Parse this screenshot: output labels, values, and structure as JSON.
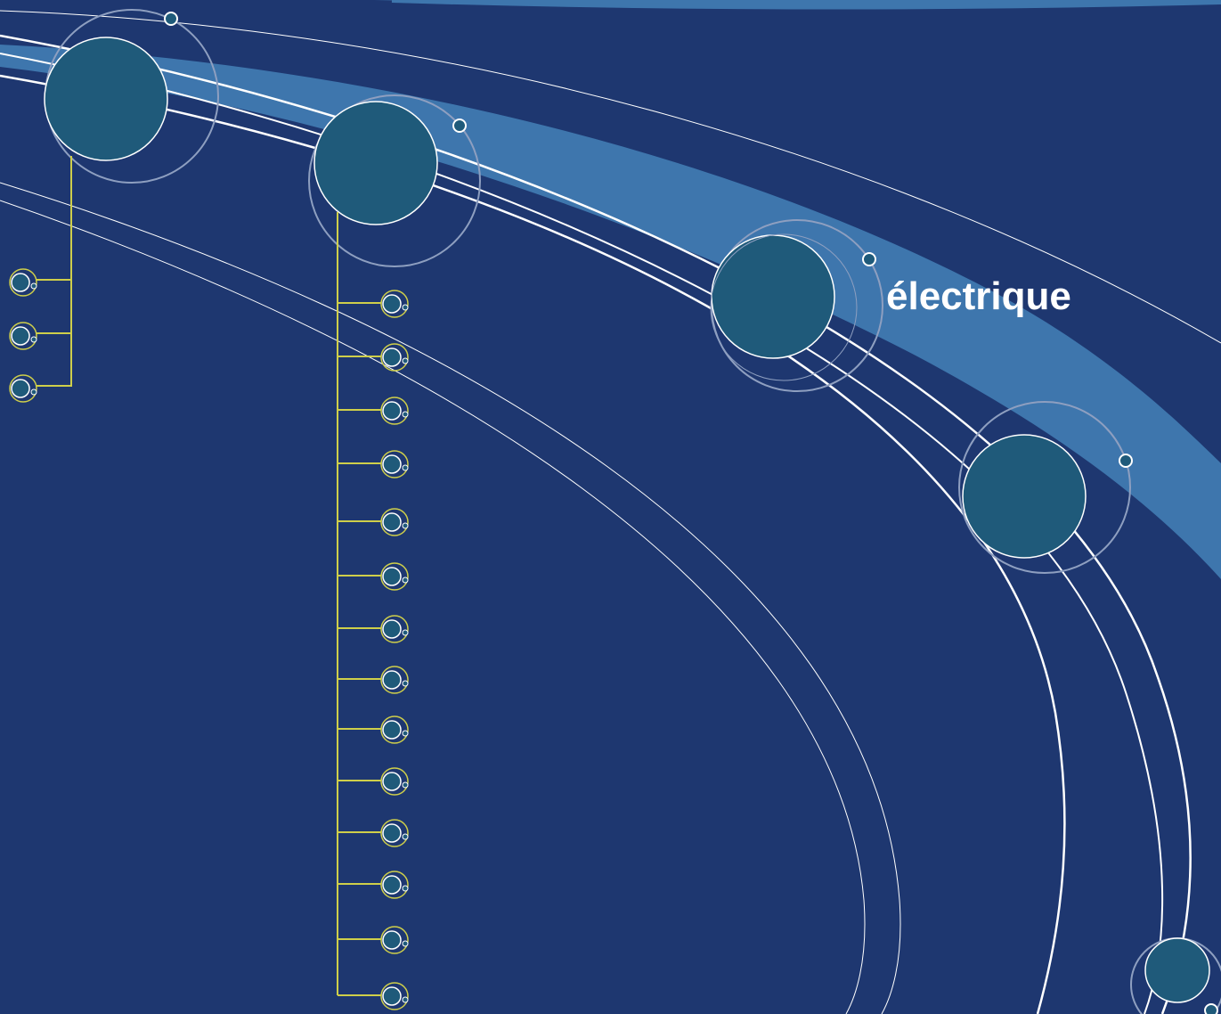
{
  "colors": {
    "background": "#1e3770",
    "band": "#3e76ad",
    "node_fill": "#1f5a7a",
    "node_stroke": "#ffffff",
    "orbit_stroke": "#8e9fc0",
    "connector": "#cfcf4a",
    "line": "#ffffff"
  },
  "labels": {
    "main": "électrique"
  },
  "diagram": {
    "main_nodes": 6,
    "branch_a_children": 3,
    "branch_b_children": 14
  }
}
